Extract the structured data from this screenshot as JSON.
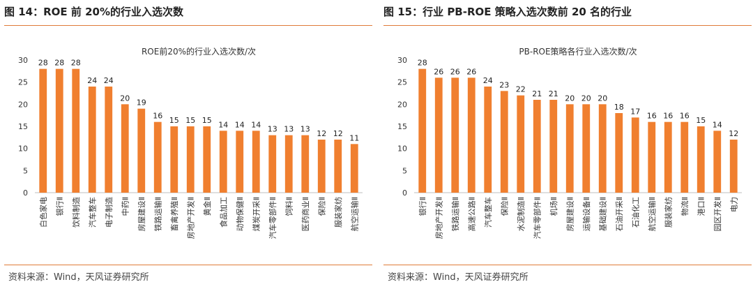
{
  "left": {
    "figure_title": "图 14：ROE 前 20%的行业入选次数",
    "source": "资料来源：Wind，天风证券研究所"
  },
  "right": {
    "figure_title": "图 15：行业 PB-ROE 策略入选次数前 20 名的行业",
    "source": "资料来源：Wind，天风证券研究所"
  },
  "colors": {
    "bar": "#f07f2f",
    "rule": "#e07b39",
    "axis": "#bfbfbf"
  },
  "chart_data": [
    {
      "type": "bar",
      "title": "ROE前20%的行业入选次数/次",
      "categories": [
        "白色家电",
        "银行Ⅱ",
        "饮料制造",
        "汽车整车",
        "电子制造",
        "中药Ⅱ",
        "房屋建设Ⅱ",
        "铁路运输Ⅱ",
        "畜禽养殖Ⅱ",
        "房地产开发Ⅱ",
        "黄金Ⅱ",
        "食品加工",
        "动物保健Ⅱ",
        "煤炭开采Ⅱ",
        "汽车零部件Ⅱ",
        "饲料Ⅱ",
        "医药商业Ⅱ",
        "保险Ⅱ",
        "服装家纺",
        "航空运输Ⅱ"
      ],
      "values": [
        28,
        28,
        28,
        24,
        24,
        20,
        19,
        16,
        15,
        15,
        15,
        14,
        14,
        14,
        13,
        13,
        13,
        12,
        12,
        11
      ],
      "ylim": [
        0,
        30
      ],
      "yticks": [
        0,
        5,
        10,
        15,
        20,
        25,
        30
      ]
    },
    {
      "type": "bar",
      "title": "PB-ROE策略各行业入选次数/次",
      "categories": [
        "银行Ⅱ",
        "房地产开发Ⅱ",
        "铁路运输Ⅱ",
        "高速公路Ⅱ",
        "汽车整车",
        "保险Ⅱ",
        "水泥制造Ⅱ",
        "汽车零部件Ⅱ",
        "机场Ⅱ",
        "房屋建设Ⅱ",
        "运输设备Ⅱ",
        "基础建设Ⅱ",
        "石油开采Ⅱ",
        "石油化工",
        "航空运输Ⅱ",
        "服装家纺",
        "物流Ⅱ",
        "港口Ⅱ",
        "园区开发Ⅱ",
        "电力"
      ],
      "values": [
        28,
        26,
        26,
        26,
        24,
        23,
        22,
        21,
        21,
        20,
        20,
        20,
        18,
        17,
        16,
        16,
        16,
        15,
        14,
        12
      ],
      "ylim": [
        0,
        30
      ],
      "yticks": [
        0,
        5,
        10,
        15,
        20,
        25,
        30
      ]
    }
  ]
}
